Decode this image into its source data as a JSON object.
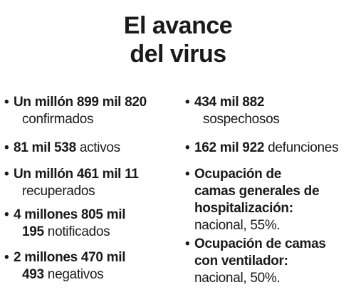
{
  "title": {
    "line1": "El avance",
    "line2": "del virus"
  },
  "bullet_glyph": "•",
  "left_items": [
    {
      "bold": "Un millón 899 mil 820",
      "normal": "confirmados"
    },
    {
      "bold": "81 mil 538",
      "normal": "activos"
    },
    {
      "bold": "Un millón 461 mil 11",
      "normal": "recuperados"
    },
    {
      "bold_a": "4 millones 805 mil",
      "bold_b": "195",
      "normal": "notificados"
    },
    {
      "bold_a": "2 millones 470 mil",
      "bold_b": "493",
      "normal": "negativos"
    }
  ],
  "right_items": [
    {
      "bold": "434 mil 882",
      "normal": "sospechosos"
    },
    {
      "bold": "162 mil 922",
      "normal": "defunciones"
    },
    {
      "bold_a": "Ocupación de",
      "bold_b": "camas generales de",
      "bold_c": "hospitalización:",
      "normal": "nacional, 55%."
    },
    {
      "bold_a": "Ocupación de camas",
      "bold_b": "con ventilador:",
      "normal": "nacional, 50%."
    }
  ]
}
